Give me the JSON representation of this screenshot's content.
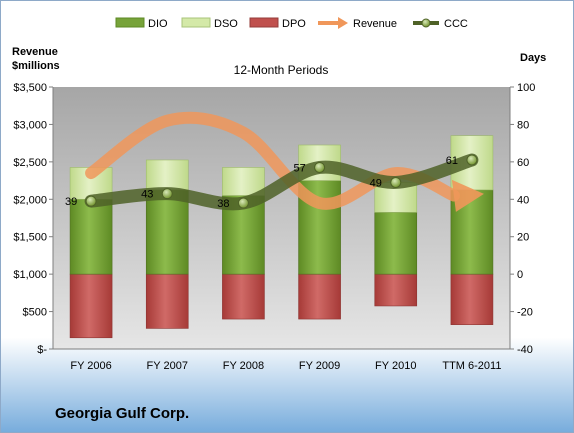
{
  "chart_data": {
    "type": "bar",
    "title": "12-Month Periods",
    "company": "Georgia Gulf Corp.",
    "categories": [
      "FY 2006",
      "FY 2007",
      "FY 2008",
      "FY 2009",
      "FY 2010",
      "TTM 6-2011"
    ],
    "left_axis": {
      "label_line1": "Revenue",
      "label_line2": "$millions",
      "min": 0,
      "max": 3500,
      "step": 500,
      "tick_labels": [
        "$-",
        "$500",
        "$1,000",
        "$1,500",
        "$2,000",
        "$2,500",
        "$3,000",
        "$3,500"
      ]
    },
    "right_axis": {
      "label": "Days",
      "min": -40,
      "max": 100,
      "step": 20,
      "tick_labels": [
        "-40",
        "-20",
        "0",
        "20",
        "40",
        "60",
        "80",
        "100"
      ]
    },
    "legend_position": "top",
    "series": [
      {
        "name": "DIO",
        "kind": "stacked-bar",
        "axis": "days",
        "color": "#77A33A",
        "values": [
          40,
          45,
          42,
          50,
          33,
          45
        ]
      },
      {
        "name": "DSO",
        "kind": "stacked-bar",
        "axis": "days",
        "color": "#D4E9A8",
        "values": [
          17,
          16,
          15,
          19,
          16,
          29
        ]
      },
      {
        "name": "DPO",
        "kind": "negative-bar",
        "axis": "days",
        "color": "#C0504D",
        "values": [
          34,
          29,
          24,
          24,
          17,
          27
        ]
      },
      {
        "name": "Revenue",
        "kind": "arrow-line",
        "axis": "revenue",
        "color": "#F0975A",
        "values": [
          2350,
          3050,
          2890,
          1950,
          2350,
          2050
        ]
      },
      {
        "name": "CCC",
        "kind": "line-markers",
        "axis": "days",
        "color": "#4F6228",
        "values": [
          39,
          43,
          38,
          57,
          49,
          61
        ],
        "labels": [
          "39",
          "43",
          "38",
          "57",
          "49",
          "61"
        ]
      }
    ],
    "grid": false,
    "colors": {
      "plot_top": "#A6A6A6",
      "plot_bottom": "#E6E6E6",
      "page_bottom": "#77ACDC"
    }
  }
}
